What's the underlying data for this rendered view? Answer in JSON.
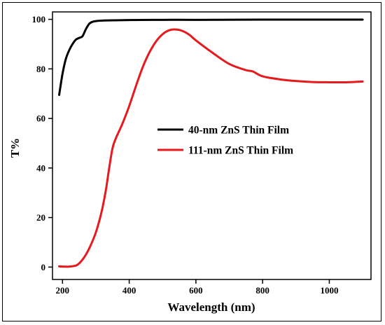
{
  "chart_data": {
    "type": "line",
    "title": "",
    "xlabel": "Wavelength (nm)",
    "ylabel": "T%",
    "xlim": [
      170,
      1125
    ],
    "ylim": [
      -5,
      103
    ],
    "xticks": [
      200,
      400,
      600,
      800,
      1000
    ],
    "yticks": [
      0,
      20,
      40,
      60,
      80,
      100
    ],
    "grid": false,
    "legend_position": "center-right",
    "series": [
      {
        "name": "40-nm ZnS Thin Film",
        "color": "#000000",
        "x": [
          190,
          200,
          210,
          220,
          230,
          240,
          250,
          260,
          270,
          280,
          290,
          300,
          320,
          350,
          400,
          500,
          600,
          800,
          1000,
          1100
        ],
        "y": [
          69.5,
          78,
          84,
          87.5,
          90,
          91.8,
          92.5,
          93.2,
          96,
          98.2,
          99,
          99.3,
          99.5,
          99.6,
          99.7,
          99.8,
          99.8,
          99.9,
          99.9,
          99.9
        ]
      },
      {
        "name": "111-nm ZnS Thin Film",
        "color": "#e8191d",
        "x": [
          190,
          200,
          220,
          240,
          250,
          260,
          270,
          280,
          290,
          300,
          310,
          320,
          330,
          340,
          350,
          360,
          380,
          400,
          420,
          440,
          460,
          480,
          500,
          520,
          540,
          560,
          580,
          600,
          650,
          700,
          750,
          770,
          800,
          850,
          900,
          950,
          1000,
          1050,
          1100
        ],
        "y": [
          0.3,
          0.2,
          0.2,
          0.6,
          1.5,
          3,
          5,
          7.5,
          10.5,
          14,
          18.5,
          24,
          31,
          40,
          48,
          52,
          58,
          65,
          73,
          80.5,
          86.5,
          91,
          94,
          95.6,
          95.9,
          95.3,
          93.8,
          91.5,
          86.5,
          82,
          79.5,
          79,
          77,
          75.8,
          75.1,
          74.7,
          74.6,
          74.6,
          74.9
        ]
      }
    ]
  }
}
